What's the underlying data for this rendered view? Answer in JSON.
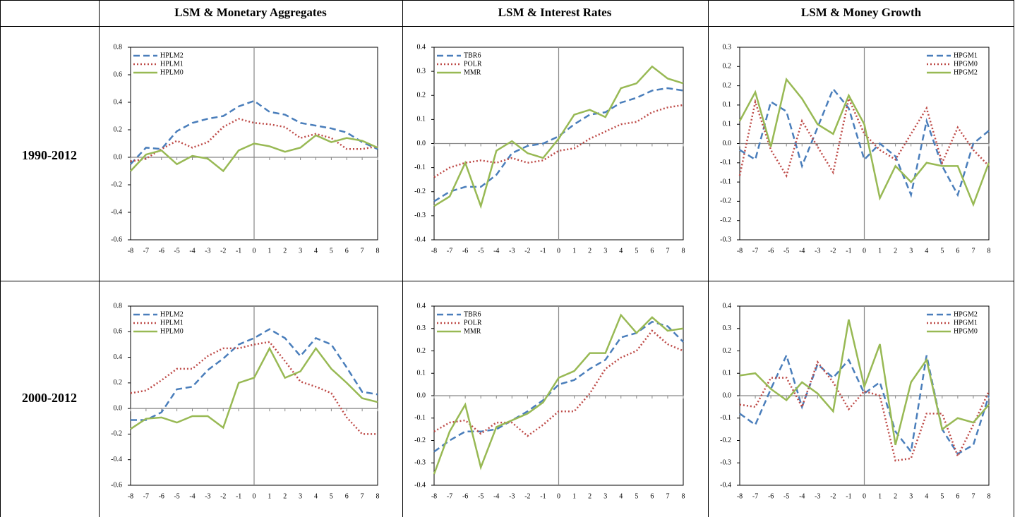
{
  "table": {
    "columns": [
      "LSM & Monetary Aggregates",
      "LSM & Interest Rates",
      "LSM & Money Growth"
    ],
    "rows": [
      "1990-2012",
      "2000-2012"
    ]
  },
  "chart_data": [
    {
      "type": "line",
      "x": [
        -8,
        -7,
        -6,
        -5,
        -4,
        -3,
        -2,
        -1,
        0,
        1,
        2,
        3,
        4,
        5,
        6,
        7,
        8
      ],
      "xlim": [
        -8,
        8
      ],
      "xticks": [
        -8,
        -7,
        -6,
        -5,
        -4,
        -3,
        -2,
        -1,
        0,
        1,
        2,
        3,
        4,
        5,
        6,
        7,
        8
      ],
      "ylim": [
        -0.6,
        0.8
      ],
      "yticks": [
        -0.6,
        -0.4,
        -0.2,
        {
          "value": 0,
          "label": "0.0"
        },
        0.2,
        0.4,
        0.6,
        0.8
      ],
      "legend": "upper left",
      "series": [
        {
          "name": "HPLM2",
          "color": "#4a7ebb",
          "style": "dashed",
          "values": [
            -0.05,
            0.07,
            0.06,
            0.19,
            0.25,
            0.28,
            0.3,
            0.37,
            0.41,
            0.33,
            0.31,
            0.25,
            0.23,
            0.21,
            0.18,
            0.11,
            0.06
          ]
        },
        {
          "name": "HPLM1",
          "color": "#be4b48",
          "style": "dotted",
          "values": [
            -0.03,
            -0.01,
            0.06,
            0.12,
            0.07,
            0.11,
            0.22,
            0.28,
            0.25,
            0.24,
            0.22,
            0.14,
            0.17,
            0.14,
            0.06,
            0.06,
            0.08
          ]
        },
        {
          "name": "HPLM0",
          "color": "#98b954",
          "style": "solid",
          "values": [
            -0.1,
            0.02,
            0.05,
            -0.05,
            0.01,
            -0.01,
            -0.1,
            0.05,
            0.1,
            0.08,
            0.04,
            0.07,
            0.16,
            0.11,
            0.14,
            0.12,
            0.07
          ]
        }
      ]
    },
    {
      "type": "line",
      "x": [
        -8,
        -7,
        -6,
        -5,
        -4,
        -3,
        -2,
        -1,
        0,
        1,
        2,
        3,
        4,
        5,
        6,
        7,
        8
      ],
      "xlim": [
        -8,
        8
      ],
      "xticks": [
        -8,
        -7,
        -6,
        -5,
        -4,
        -3,
        -2,
        -1,
        0,
        1,
        2,
        3,
        4,
        5,
        6,
        7,
        8
      ],
      "ylim": [
        -0.4,
        0.4
      ],
      "yticks": [
        -0.4,
        -0.3,
        -0.2,
        -0.1,
        {
          "value": 0,
          "label": "0.0"
        },
        0.1,
        0.2,
        0.3,
        0.4
      ],
      "legend": "upper left",
      "series": [
        {
          "name": "TBR6",
          "color": "#4a7ebb",
          "style": "dashed",
          "values": [
            -0.24,
            -0.2,
            -0.18,
            -0.18,
            -0.13,
            -0.04,
            -0.01,
            0.0,
            0.03,
            0.08,
            0.12,
            0.13,
            0.17,
            0.19,
            0.22,
            0.23,
            0.22
          ]
        },
        {
          "name": "POLR",
          "color": "#be4b48",
          "style": "dotted",
          "values": [
            -0.14,
            -0.1,
            -0.08,
            -0.07,
            -0.08,
            -0.06,
            -0.08,
            -0.07,
            -0.03,
            -0.02,
            0.02,
            0.05,
            0.08,
            0.09,
            0.13,
            0.15,
            0.16
          ]
        },
        {
          "name": "MMR",
          "color": "#98b954",
          "style": "solid",
          "values": [
            -0.26,
            -0.22,
            -0.08,
            -0.26,
            -0.03,
            0.01,
            -0.04,
            -0.06,
            0.02,
            0.12,
            0.14,
            0.11,
            0.23,
            0.25,
            0.32,
            0.27,
            0.25
          ]
        }
      ]
    },
    {
      "type": "line",
      "x": [
        -8,
        -7,
        -6,
        -5,
        -4,
        -3,
        -2,
        -1,
        0,
        1,
        2,
        3,
        4,
        5,
        6,
        7,
        8
      ],
      "xlim": [
        -8,
        8
      ],
      "xticks": [
        -8,
        -7,
        -6,
        -5,
        -4,
        -3,
        -2,
        -1,
        0,
        1,
        2,
        3,
        4,
        5,
        6,
        7,
        8
      ],
      "ylim": [
        -0.3,
        0.3
      ],
      "yticks": [
        -0.3,
        {
          "value": -0.24,
          "label": "-0.2"
        },
        {
          "value": -0.18,
          "label": "-0.2"
        },
        {
          "value": -0.12,
          "label": "-0.1"
        },
        {
          "value": -0.06,
          "label": "-0.1"
        },
        {
          "value": 0,
          "label": "0.0"
        },
        {
          "value": 0.06,
          "label": "0.1"
        },
        {
          "value": 0.12,
          "label": "0.1"
        },
        {
          "value": 0.18,
          "label": "0.2"
        },
        {
          "value": 0.24,
          "label": "0.2"
        },
        0.3
      ],
      "legend": "upper right",
      "series": [
        {
          "name": "HPGM1",
          "color": "#4a7ebb",
          "style": "dashed",
          "values": [
            -0.02,
            -0.05,
            0.13,
            0.1,
            -0.07,
            0.05,
            0.17,
            0.11,
            -0.05,
            0.0,
            -0.04,
            -0.16,
            0.07,
            -0.07,
            -0.16,
            0.0,
            0.04
          ]
        },
        {
          "name": "HPGM0",
          "color": "#be4b48",
          "style": "dotted",
          "values": [
            -0.1,
            0.13,
            -0.02,
            -0.1,
            0.07,
            -0.01,
            -0.09,
            0.14,
            0.03,
            -0.02,
            -0.05,
            0.03,
            0.11,
            -0.06,
            0.05,
            -0.02,
            -0.07
          ]
        },
        {
          "name": "HPGM2",
          "color": "#98b954",
          "style": "solid",
          "values": [
            0.07,
            0.16,
            -0.01,
            0.2,
            0.14,
            0.06,
            0.03,
            0.15,
            0.06,
            -0.17,
            -0.07,
            -0.12,
            -0.06,
            -0.07,
            -0.07,
            -0.19,
            -0.06
          ]
        }
      ]
    },
    {
      "type": "line",
      "x": [
        -8,
        -7,
        -6,
        -5,
        -4,
        -3,
        -2,
        -1,
        0,
        1,
        2,
        3,
        4,
        5,
        6,
        7,
        8
      ],
      "xlim": [
        -8,
        8
      ],
      "xticks": [
        -8,
        -7,
        -6,
        -5,
        -4,
        -3,
        -2,
        -1,
        0,
        1,
        2,
        3,
        4,
        5,
        6,
        7,
        8
      ],
      "ylim": [
        -0.6,
        0.8
      ],
      "yticks": [
        -0.6,
        -0.4,
        -0.2,
        {
          "value": 0,
          "label": "0.0"
        },
        0.2,
        0.4,
        0.6,
        0.8
      ],
      "legend": "upper left",
      "series": [
        {
          "name": "HPLM2",
          "color": "#4a7ebb",
          "style": "dashed",
          "values": [
            -0.09,
            -0.09,
            -0.03,
            0.15,
            0.17,
            0.3,
            0.39,
            0.5,
            0.55,
            0.62,
            0.55,
            0.41,
            0.55,
            0.5,
            0.32,
            0.13,
            0.11
          ]
        },
        {
          "name": "HPLM1",
          "color": "#be4b48",
          "style": "dotted",
          "values": [
            0.12,
            0.14,
            0.22,
            0.31,
            0.31,
            0.41,
            0.47,
            0.47,
            0.5,
            0.52,
            0.37,
            0.21,
            0.17,
            0.12,
            -0.07,
            -0.2,
            -0.2
          ]
        },
        {
          "name": "HPLM0",
          "color": "#98b954",
          "style": "solid",
          "values": [
            -0.16,
            -0.08,
            -0.07,
            -0.11,
            -0.06,
            -0.06,
            -0.15,
            0.2,
            0.24,
            0.47,
            0.24,
            0.29,
            0.47,
            0.31,
            0.2,
            0.08,
            0.05
          ]
        }
      ]
    },
    {
      "type": "line",
      "x": [
        -8,
        -7,
        -6,
        -5,
        -4,
        -3,
        -2,
        -1,
        0,
        1,
        2,
        3,
        4,
        5,
        6,
        7,
        8
      ],
      "xlim": [
        -8,
        8
      ],
      "xticks": [
        -8,
        -7,
        -6,
        -5,
        -4,
        -3,
        -2,
        -1,
        0,
        1,
        2,
        3,
        4,
        5,
        6,
        7,
        8
      ],
      "ylim": [
        -0.4,
        0.4
      ],
      "yticks": [
        -0.4,
        -0.3,
        -0.2,
        -0.1,
        {
          "value": 0,
          "label": "0.0"
        },
        0.1,
        0.2,
        0.3,
        0.4
      ],
      "legend": "upper left",
      "series": [
        {
          "name": "TBR6",
          "color": "#4a7ebb",
          "style": "dashed",
          "values": [
            -0.25,
            -0.2,
            -0.16,
            -0.16,
            -0.15,
            -0.11,
            -0.07,
            -0.02,
            0.05,
            0.07,
            0.12,
            0.16,
            0.26,
            0.28,
            0.33,
            0.31,
            0.24
          ]
        },
        {
          "name": "POLR",
          "color": "#be4b48",
          "style": "dotted",
          "values": [
            -0.16,
            -0.12,
            -0.11,
            -0.17,
            -0.12,
            -0.12,
            -0.18,
            -0.13,
            -0.07,
            -0.07,
            0.01,
            0.12,
            0.17,
            0.2,
            0.29,
            0.23,
            0.2
          ]
        },
        {
          "name": "MMR",
          "color": "#98b954",
          "style": "solid",
          "values": [
            -0.35,
            -0.16,
            -0.04,
            -0.32,
            -0.14,
            -0.11,
            -0.08,
            -0.03,
            0.08,
            0.11,
            0.19,
            0.19,
            0.36,
            0.28,
            0.35,
            0.29,
            0.3
          ]
        }
      ]
    },
    {
      "type": "line",
      "x": [
        -8,
        -7,
        -6,
        -5,
        -4,
        -3,
        -2,
        -1,
        0,
        1,
        2,
        3,
        4,
        5,
        6,
        7,
        8
      ],
      "xlim": [
        -8,
        8
      ],
      "xticks": [
        -8,
        -7,
        -6,
        -5,
        -4,
        -3,
        -2,
        -1,
        0,
        1,
        2,
        3,
        4,
        5,
        6,
        7,
        8
      ],
      "ylim": [
        -0.4,
        0.4
      ],
      "yticks": [
        -0.4,
        -0.3,
        -0.2,
        -0.1,
        {
          "value": 0,
          "label": "0.0"
        },
        0.1,
        0.2,
        0.3,
        0.4
      ],
      "legend": "upper right",
      "series": [
        {
          "name": "HPGM2",
          "color": "#4a7ebb",
          "style": "dashed",
          "values": [
            -0.08,
            -0.13,
            0.03,
            0.18,
            -0.05,
            0.14,
            0.08,
            0.16,
            0.01,
            0.06,
            -0.16,
            -0.25,
            0.18,
            -0.15,
            -0.26,
            -0.22,
            0.0
          ]
        },
        {
          "name": "HPGM1",
          "color": "#be4b48",
          "style": "dotted",
          "values": [
            -0.04,
            -0.05,
            0.08,
            0.08,
            -0.05,
            0.15,
            0.06,
            -0.06,
            0.02,
            0.0,
            -0.29,
            -0.28,
            -0.08,
            -0.08,
            -0.27,
            -0.13,
            0.02
          ]
        },
        {
          "name": "HPGM0",
          "color": "#98b954",
          "style": "solid",
          "values": [
            0.09,
            0.1,
            0.03,
            -0.02,
            0.06,
            0.01,
            -0.07,
            0.34,
            0.04,
            0.23,
            -0.22,
            0.06,
            0.16,
            -0.15,
            -0.1,
            -0.12,
            -0.04
          ]
        }
      ]
    }
  ]
}
